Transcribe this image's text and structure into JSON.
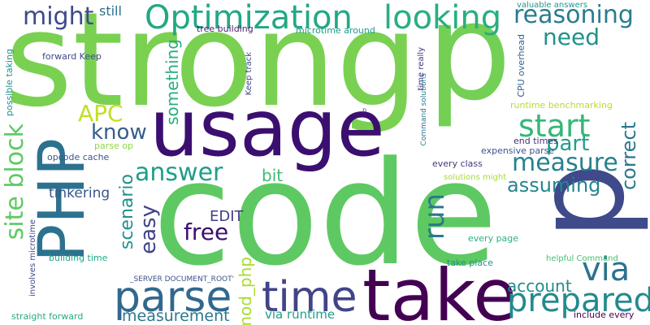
{
  "words": [
    {
      "text": "strong",
      "color": "#7ad151"
    },
    {
      "text": "code",
      "color": "#5ec962"
    },
    {
      "text": "usage",
      "color": "#3b0f70"
    },
    {
      "text": "p",
      "color": "#3e4a89"
    },
    {
      "text": "p",
      "color": "#73d055"
    },
    {
      "text": "take",
      "color": "#440154"
    },
    {
      "text": "PHP",
      "color": "#2c728e"
    },
    {
      "text": "Optimization",
      "color": "#22a884"
    },
    {
      "text": "looking",
      "color": "#29af7f"
    },
    {
      "text": "parse",
      "color": "#31688e"
    },
    {
      "text": "time",
      "color": "#414487"
    },
    {
      "text": "prepared",
      "color": "#238a8d"
    },
    {
      "text": "measure",
      "color": "#26828e"
    },
    {
      "text": "site block",
      "color": "#5ec962"
    },
    {
      "text": "answer",
      "color": "#1f9e89"
    },
    {
      "text": "start",
      "color": "#35b779"
    },
    {
      "text": "via",
      "color": "#2c728e"
    },
    {
      "text": "might",
      "color": "#3e4a89"
    },
    {
      "text": "reasoning",
      "color": "#287d8e"
    },
    {
      "text": "need",
      "color": "#21918c"
    },
    {
      "text": "run",
      "color": "#2a788e"
    },
    {
      "text": "know",
      "color": "#365c8d"
    },
    {
      "text": "part",
      "color": "#1f9e89"
    },
    {
      "text": "APC",
      "color": "#c2df23"
    },
    {
      "text": "correct",
      "color": "#2a788e"
    },
    {
      "text": "assuming",
      "color": "#25858e"
    },
    {
      "text": "scenario",
      "color": "#21918c"
    },
    {
      "text": "easy",
      "color": "#414487"
    },
    {
      "text": "free",
      "color": "#3b0f70"
    },
    {
      "text": "account",
      "color": "#238a8d"
    },
    {
      "text": "measurement",
      "color": "#2a788e"
    },
    {
      "text": "something",
      "color": "#27ad81"
    },
    {
      "text": "mod_php",
      "color": "#aadc32"
    },
    {
      "text": "bit",
      "color": "#3dbc74"
    },
    {
      "text": "EDIT",
      "color": "#433e85"
    },
    {
      "text": "tinkering",
      "color": "#39568c"
    },
    {
      "text": "still",
      "color": "#2d708e"
    },
    {
      "text": "via runtime",
      "color": "#1f9e89"
    },
    {
      "text": "tree building",
      "color": "#481f70"
    },
    {
      "text": "microtime around",
      "color": "#1e9b8a"
    },
    {
      "text": "valuable answers",
      "color": "#1f978b"
    },
    {
      "text": "CPU overhead",
      "color": "#355f8d"
    },
    {
      "text": "runtime benchmarking",
      "color": "#b5de2b"
    },
    {
      "text": "Keep track",
      "color": "#3e4a89"
    },
    {
      "text": "forward Keep",
      "color": "#3e4989"
    },
    {
      "text": "possible taking",
      "color": "#21918c"
    },
    {
      "text": "time really",
      "color": "#46337e"
    },
    {
      "text": "Command solutions",
      "color": "#2a788e"
    },
    {
      "text": "end times",
      "color": "#46327e"
    },
    {
      "text": "expensive parse",
      "color": "#3b528b"
    },
    {
      "text": "every class",
      "color": "#453781"
    },
    {
      "text": "solutions might",
      "color": "#a5db36"
    },
    {
      "text": "parse op",
      "color": "#8fd744"
    },
    {
      "text": "opcode cache",
      "color": "#3b528b"
    },
    {
      "text": "involves microtime",
      "color": "#3e4a89"
    },
    {
      "text": "building time",
      "color": "#22a884"
    },
    {
      "text": "_SERVER DOCUMENT_ROOT'",
      "color": "#3b528b"
    },
    {
      "text": "take place",
      "color": "#21918c"
    },
    {
      "text": "every page",
      "color": "#2ab07f"
    },
    {
      "text": "helpful Command",
      "color": "#44bf70"
    },
    {
      "text": "include every",
      "color": "#440154"
    },
    {
      "text": "straight forward",
      "color": "#25ab82"
    },
    {
      "text": "p",
      "color": "#3e4a89"
    }
  ]
}
